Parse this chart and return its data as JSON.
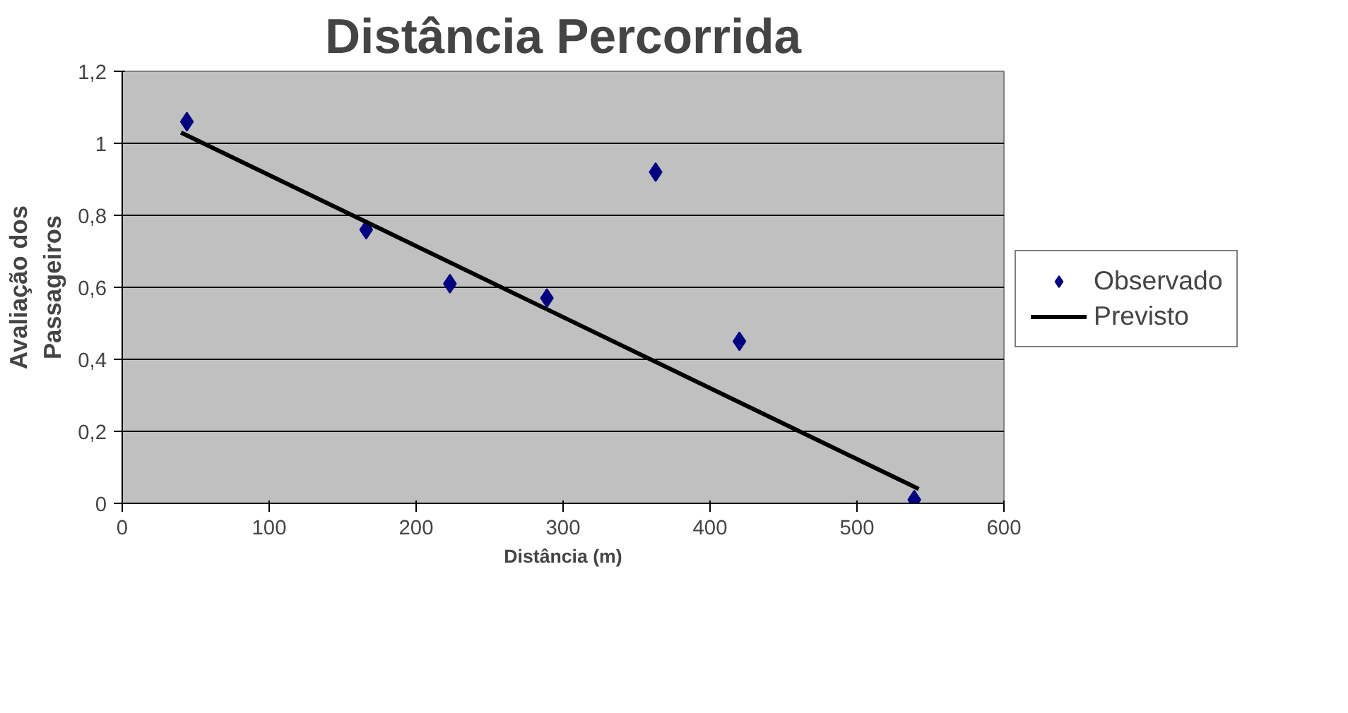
{
  "chart_data": {
    "type": "scatter",
    "title": "Distância Percorrida",
    "xlabel": "Distância (m)",
    "ylabel": "Avaliação dos Passageiros",
    "xlim": [
      0,
      600
    ],
    "xticks": [
      0,
      100,
      200,
      300,
      400,
      500,
      600
    ],
    "ylim": [
      0,
      1.2
    ],
    "yticks": [
      0,
      {
        "value": 0.2,
        "label": "0,2"
      },
      {
        "value": 0.4,
        "label": "0,4"
      },
      {
        "value": 0.6,
        "label": "0,6"
      },
      {
        "value": 0.8,
        "label": "0,8"
      },
      1,
      {
        "value": 1.2,
        "label": "1,2"
      }
    ],
    "grid": "y",
    "legend": "right",
    "series": [
      {
        "name": "Observado",
        "marker": "diamond",
        "color": "#000080",
        "x": [
          44,
          166,
          223,
          289,
          363,
          420,
          539
        ],
        "values": [
          1.06,
          0.76,
          0.61,
          0.57,
          0.92,
          0.45,
          0.01
        ]
      },
      {
        "name": "Previsto",
        "type": "line",
        "color": "#000000",
        "line_style": "solid",
        "x": [
          40,
          542
        ],
        "values": [
          1.03,
          0.04
        ]
      }
    ]
  }
}
